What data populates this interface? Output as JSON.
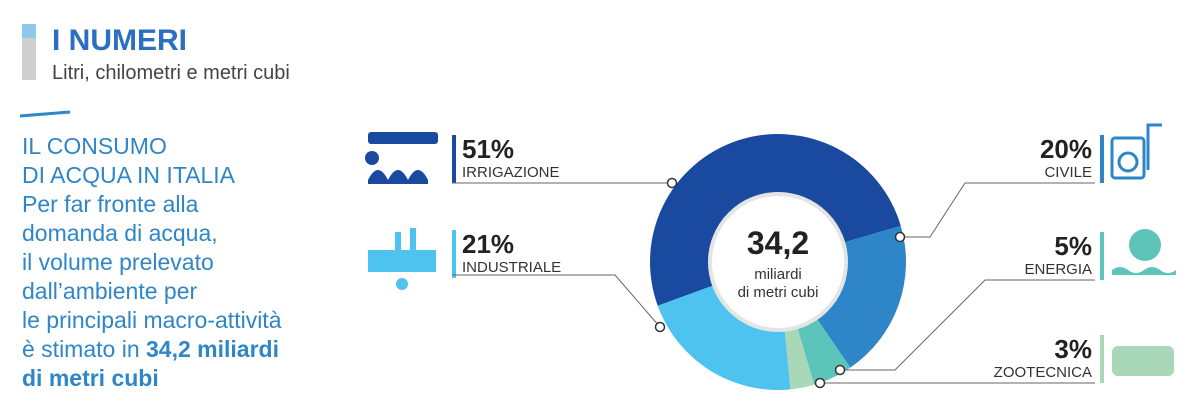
{
  "header": {
    "title": "I NUMERI",
    "subtitle": "Litri, chilometri e metri cubi"
  },
  "intro": {
    "heading": [
      "IL CONSUMO",
      "DI ACQUA IN ITALIA"
    ],
    "body": [
      "Per far fronte alla",
      "domanda di acqua,",
      "il volume prelevato",
      "dall’ambiente  per",
      "le principali macro-attività",
      "è stimato in "
    ],
    "body_bold": [
      "34,2 miliardi",
      "di metri cubi"
    ]
  },
  "chart_data": {
    "type": "donut",
    "categories": [
      "IRRIGAZIONE",
      "CIVILE",
      "ENERGIA",
      "ZOOTECNICA",
      "INDUSTRIALE"
    ],
    "values": [
      51,
      20,
      5,
      3,
      21
    ],
    "value_labels": [
      "51%",
      "20%",
      "5%",
      "3%",
      "21%"
    ],
    "colors": [
      "#1a4aa0",
      "#2e86c8",
      "#5cc4b8",
      "#a8d8b8",
      "#4fc3f0"
    ],
    "center_value": "34,2",
    "center_label": [
      "miliardi",
      "di metri cubi"
    ]
  }
}
